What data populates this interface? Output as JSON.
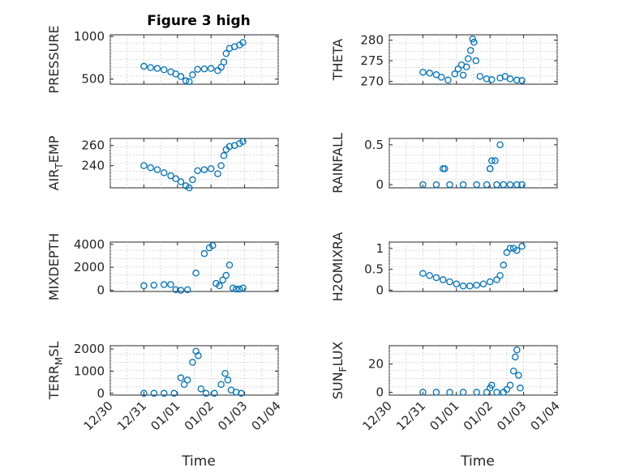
{
  "figure": {
    "title": "Figure 3 high",
    "marker_color": "#0072BD",
    "xlabel": "Time",
    "xticks": [
      "12/30",
      "12/31",
      "01/01",
      "01/02",
      "01/03",
      "01/04"
    ]
  },
  "chart_data": [
    {
      "type": "scatter",
      "ylabel": "PRESSURE",
      "yticks": [
        "500",
        "1000"
      ],
      "ytick_values": [
        500,
        1000
      ],
      "ylim": [
        440,
        1020
      ],
      "xlim": [
        0,
        5
      ],
      "grid": true,
      "x": [
        1.0,
        1.2,
        1.4,
        1.6,
        1.8,
        1.95,
        2.1,
        2.25,
        2.35,
        2.45,
        2.6,
        2.8,
        3.0,
        3.2,
        3.3,
        3.38,
        3.45,
        3.55,
        3.7,
        3.85,
        3.95
      ],
      "y": [
        650,
        635,
        625,
        610,
        585,
        560,
        530,
        480,
        470,
        550,
        615,
        620,
        625,
        600,
        640,
        700,
        800,
        860,
        880,
        900,
        930
      ]
    },
    {
      "type": "scatter",
      "ylabel": "THETA",
      "yticks": [
        "270",
        "275",
        "280"
      ],
      "ytick_values": [
        270,
        275,
        280
      ],
      "ylim": [
        269.3,
        281.3
      ],
      "xlim": [
        0,
        5
      ],
      "grid": true,
      "x": [
        1.0,
        1.2,
        1.4,
        1.55,
        1.75,
        1.95,
        2.05,
        2.15,
        2.2,
        2.3,
        2.35,
        2.42,
        2.48,
        2.52,
        2.58,
        2.7,
        2.9,
        3.05,
        3.3,
        3.45,
        3.6,
        3.8,
        3.95
      ],
      "y": [
        272.2,
        272.0,
        271.6,
        271.0,
        270.3,
        271.8,
        273.0,
        274.0,
        271.5,
        273.5,
        275.5,
        277.5,
        280.3,
        279.5,
        275.0,
        271.2,
        270.6,
        270.4,
        270.8,
        271.2,
        270.6,
        270.3,
        270.2
      ]
    },
    {
      "type": "scatter",
      "ylabel": "AIR_TEMP",
      "yticks": [
        "240",
        "260"
      ],
      "ytick_values": [
        240,
        260
      ],
      "ylim": [
        218,
        267
      ],
      "xlim": [
        0,
        5
      ],
      "grid": true,
      "x": [
        1.0,
        1.2,
        1.4,
        1.6,
        1.8,
        1.95,
        2.1,
        2.25,
        2.35,
        2.45,
        2.6,
        2.8,
        3.0,
        3.2,
        3.3,
        3.38,
        3.45,
        3.55,
        3.7,
        3.85,
        3.95
      ],
      "y": [
        240,
        238,
        236,
        233,
        230,
        227,
        224,
        220,
        218,
        226,
        235,
        236,
        237,
        232,
        240,
        250,
        256,
        259,
        260,
        262,
        264
      ]
    },
    {
      "type": "scatter",
      "ylabel": "RAINFALL",
      "yticks": [
        "0",
        "0.5"
      ],
      "ytick_values": [
        0,
        0.5
      ],
      "ylim": [
        -0.04,
        0.58
      ],
      "xlim": [
        0,
        5
      ],
      "grid": true,
      "x": [
        1.0,
        1.4,
        1.8,
        2.2,
        2.6,
        2.9,
        3.0,
        3.05,
        3.15,
        3.2,
        3.3,
        3.4,
        3.6,
        3.8,
        3.95,
        1.6,
        1.65,
        3.0
      ],
      "y": [
        0,
        0,
        0,
        0,
        0,
        0,
        0.2,
        0.3,
        0.3,
        0.0,
        0.5,
        0,
        0,
        0,
        0,
        0.2,
        0.2,
        0.2
      ]
    },
    {
      "type": "scatter",
      "ylabel": "MIXDEPTH",
      "yticks": [
        "0",
        "2000",
        "4000"
      ],
      "ytick_values": [
        0,
        2000,
        4000
      ],
      "ylim": [
        -100,
        4200
      ],
      "xlim": [
        0,
        5
      ],
      "grid": true,
      "x": [
        1.0,
        1.3,
        1.6,
        1.8,
        1.95,
        2.1,
        2.3,
        2.55,
        2.8,
        2.95,
        3.05,
        3.15,
        3.25,
        3.35,
        3.45,
        3.55,
        3.65,
        3.75,
        3.85,
        3.95
      ],
      "y": [
        400,
        450,
        500,
        500,
        50,
        0,
        50,
        1500,
        3200,
        3700,
        3900,
        600,
        400,
        900,
        1300,
        2200,
        200,
        100,
        100,
        200
      ]
    },
    {
      "type": "scatter",
      "ylabel": "H2OMIXRA",
      "yticks": [
        "0",
        "0.5",
        "1"
      ],
      "ytick_values": [
        0,
        0.5,
        1
      ],
      "ylim": [
        -0.03,
        1.15
      ],
      "xlim": [
        0,
        5
      ],
      "grid": true,
      "x": [
        1.0,
        1.2,
        1.4,
        1.6,
        1.8,
        2.0,
        2.2,
        2.4,
        2.6,
        2.8,
        3.0,
        3.2,
        3.3,
        3.4,
        3.5,
        3.6,
        3.7,
        3.8,
        3.95
      ],
      "y": [
        0.4,
        0.35,
        0.3,
        0.25,
        0.2,
        0.15,
        0.1,
        0.1,
        0.12,
        0.15,
        0.2,
        0.25,
        0.35,
        0.6,
        0.9,
        1.0,
        1.0,
        0.95,
        1.05
      ]
    },
    {
      "type": "scatter",
      "ylabel": "TERR_MSL",
      "yticks": [
        "0",
        "1000",
        "2000"
      ],
      "ytick_values": [
        0,
        1000,
        2000
      ],
      "ylim": [
        -80,
        2150
      ],
      "xlim": [
        0,
        5
      ],
      "grid": true,
      "x": [
        1.0,
        1.3,
        1.6,
        1.9,
        2.1,
        2.2,
        2.3,
        2.45,
        2.55,
        2.62,
        2.7,
        2.85,
        3.1,
        3.3,
        3.42,
        3.5,
        3.6,
        3.75,
        3.9
      ],
      "y": [
        0,
        0,
        0,
        0,
        700,
        400,
        600,
        1400,
        1900,
        1700,
        200,
        0,
        0,
        400,
        900,
        600,
        150,
        50,
        0
      ]
    },
    {
      "type": "scatter",
      "ylabel": "SUN_FLUX",
      "yticks": [
        "0",
        "20"
      ],
      "ytick_values": [
        0,
        20
      ],
      "ylim": [
        -2,
        33
      ],
      "xlim": [
        0,
        5
      ],
      "grid": true,
      "x": [
        1.0,
        1.4,
        1.8,
        2.2,
        2.6,
        2.9,
        3.0,
        3.05,
        3.2,
        3.4,
        3.5,
        3.6,
        3.7,
        3.75,
        3.8,
        3.85,
        3.9
      ],
      "y": [
        0,
        0,
        0,
        0,
        0,
        0,
        3,
        5,
        0,
        0,
        2,
        5,
        15,
        25,
        30,
        12,
        3
      ]
    }
  ]
}
